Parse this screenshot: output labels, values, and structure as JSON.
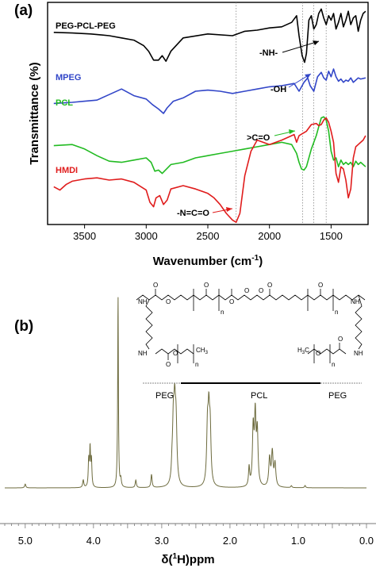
{
  "chart_data": [
    {
      "type": "line",
      "panel_label": "(a)",
      "xlabel": "Wavenumber (cm",
      "xlabel_sup": "-1",
      "xlabel_end": ")",
      "ylabel": "Transmittance (%)",
      "xlim": [
        3800,
        1200
      ],
      "x_ticks": [
        {
          "value": 3500,
          "label": "3500"
        },
        {
          "value": 3000,
          "label": "3000"
        },
        {
          "value": 2500,
          "label": "2500"
        },
        {
          "value": 2000,
          "label": "2000"
        },
        {
          "value": 1500,
          "label": "1500"
        }
      ],
      "reference_lines": [
        2270,
        1730,
        1640,
        1540
      ],
      "series": [
        {
          "name": "PEG-PCL-PEG",
          "color": "#000000",
          "points": [
            [
              3750,
              0.865
            ],
            [
              3600,
              0.862
            ],
            [
              3450,
              0.858
            ],
            [
              3300,
              0.85
            ],
            [
              3200,
              0.84
            ],
            [
              3100,
              0.83
            ],
            [
              3020,
              0.805
            ],
            [
              2980,
              0.78
            ],
            [
              2940,
              0.74
            ],
            [
              2900,
              0.74
            ],
            [
              2870,
              0.76
            ],
            [
              2840,
              0.735
            ],
            [
              2800,
              0.78
            ],
            [
              2700,
              0.84
            ],
            [
              2500,
              0.858
            ],
            [
              2300,
              0.85
            ],
            [
              2200,
              0.87
            ],
            [
              2100,
              0.875
            ],
            [
              2000,
              0.885
            ],
            [
              1900,
              0.89
            ],
            [
              1820,
              0.91
            ],
            [
              1780,
              0.94
            ],
            [
              1760,
              0.85
            ],
            [
              1735,
              0.76
            ],
            [
              1715,
              0.73
            ],
            [
              1700,
              0.77
            ],
            [
              1680,
              0.92
            ],
            [
              1660,
              0.94
            ],
            [
              1640,
              0.88
            ],
            [
              1620,
              0.9
            ],
            [
              1600,
              0.95
            ],
            [
              1580,
              0.97
            ],
            [
              1560,
              0.93
            ],
            [
              1540,
              0.9
            ],
            [
              1520,
              0.94
            ],
            [
              1500,
              0.92
            ],
            [
              1480,
              0.95
            ],
            [
              1460,
              0.88
            ],
            [
              1440,
              0.91
            ],
            [
              1420,
              0.95
            ],
            [
              1400,
              0.89
            ],
            [
              1380,
              0.92
            ],
            [
              1360,
              0.96
            ],
            [
              1340,
              0.9
            ],
            [
              1320,
              0.93
            ],
            [
              1300,
              0.94
            ],
            [
              1280,
              0.87
            ],
            [
              1260,
              0.92
            ],
            [
              1240,
              0.95
            ],
            [
              1220,
              0.96
            ]
          ]
        },
        {
          "name": "MPEG",
          "color": "#3246c8",
          "points": [
            [
              3750,
              0.545
            ],
            [
              3600,
              0.55
            ],
            [
              3500,
              0.555
            ],
            [
              3400,
              0.56
            ],
            [
              3300,
              0.585
            ],
            [
              3200,
              0.61
            ],
            [
              3100,
              0.58
            ],
            [
              3000,
              0.565
            ],
            [
              2950,
              0.54
            ],
            [
              2900,
              0.52
            ],
            [
              2860,
              0.5
            ],
            [
              2830,
              0.525
            ],
            [
              2780,
              0.555
            ],
            [
              2700,
              0.57
            ],
            [
              2600,
              0.6
            ],
            [
              2500,
              0.605
            ],
            [
              2400,
              0.6
            ],
            [
              2300,
              0.59
            ],
            [
              2200,
              0.6
            ],
            [
              2100,
              0.61
            ],
            [
              2000,
              0.62
            ],
            [
              1900,
              0.625
            ],
            [
              1800,
              0.635
            ],
            [
              1760,
              0.6
            ],
            [
              1720,
              0.64
            ],
            [
              1690,
              0.66
            ],
            [
              1670,
              0.625
            ],
            [
              1640,
              0.6
            ],
            [
              1610,
              0.665
            ],
            [
              1580,
              0.685
            ],
            [
              1560,
              0.66
            ],
            [
              1540,
              0.65
            ],
            [
              1520,
              0.69
            ],
            [
              1500,
              0.665
            ],
            [
              1480,
              0.7
            ],
            [
              1460,
              0.665
            ],
            [
              1440,
              0.645
            ],
            [
              1420,
              0.655
            ],
            [
              1400,
              0.64
            ],
            [
              1380,
              0.65
            ],
            [
              1360,
              0.645
            ],
            [
              1340,
              0.66
            ],
            [
              1320,
              0.64
            ],
            [
              1300,
              0.65
            ],
            [
              1280,
              0.66
            ],
            [
              1260,
              0.655
            ],
            [
              1220,
              0.66
            ]
          ]
        },
        {
          "name": "PCL",
          "color": "#22bb22",
          "points": [
            [
              3750,
              0.355
            ],
            [
              3600,
              0.36
            ],
            [
              3500,
              0.34
            ],
            [
              3400,
              0.31
            ],
            [
              3300,
              0.285
            ],
            [
              3200,
              0.28
            ],
            [
              3100,
              0.29
            ],
            [
              3000,
              0.3
            ],
            [
              2960,
              0.28
            ],
            [
              2930,
              0.24
            ],
            [
              2900,
              0.245
            ],
            [
              2870,
              0.23
            ],
            [
              2800,
              0.27
            ],
            [
              2700,
              0.28
            ],
            [
              2600,
              0.3
            ],
            [
              2500,
              0.31
            ],
            [
              2400,
              0.32
            ],
            [
              2300,
              0.33
            ],
            [
              2200,
              0.34
            ],
            [
              2100,
              0.35
            ],
            [
              2000,
              0.36
            ],
            [
              1900,
              0.37
            ],
            [
              1820,
              0.36
            ],
            [
              1780,
              0.32
            ],
            [
              1760,
              0.28
            ],
            [
              1740,
              0.25
            ],
            [
              1720,
              0.245
            ],
            [
              1700,
              0.26
            ],
            [
              1660,
              0.34
            ],
            [
              1620,
              0.4
            ],
            [
              1600,
              0.44
            ],
            [
              1580,
              0.48
            ],
            [
              1560,
              0.485
            ],
            [
              1540,
              0.47
            ],
            [
              1520,
              0.42
            ],
            [
              1500,
              0.33
            ],
            [
              1480,
              0.29
            ],
            [
              1460,
              0.3
            ],
            [
              1440,
              0.26
            ],
            [
              1420,
              0.29
            ],
            [
              1400,
              0.27
            ],
            [
              1380,
              0.28
            ],
            [
              1360,
              0.27
            ],
            [
              1340,
              0.28
            ],
            [
              1320,
              0.26
            ],
            [
              1300,
              0.285
            ],
            [
              1280,
              0.27
            ],
            [
              1260,
              0.28
            ],
            [
              1220,
              0.26
            ]
          ]
        },
        {
          "name": "HMDI",
          "color": "#e01c1c",
          "points": [
            [
              3750,
              0.17
            ],
            [
              3700,
              0.155
            ],
            [
              3650,
              0.18
            ],
            [
              3600,
              0.195
            ],
            [
              3500,
              0.205
            ],
            [
              3400,
              0.21
            ],
            [
              3300,
              0.2
            ],
            [
              3200,
              0.205
            ],
            [
              3100,
              0.19
            ],
            [
              3000,
              0.155
            ],
            [
              2970,
              0.1
            ],
            [
              2940,
              0.08
            ],
            [
              2920,
              0.12
            ],
            [
              2890,
              0.13
            ],
            [
              2860,
              0.09
            ],
            [
              2830,
              0.11
            ],
            [
              2800,
              0.16
            ],
            [
              2700,
              0.175
            ],
            [
              2600,
              0.16
            ],
            [
              2500,
              0.14
            ],
            [
              2450,
              0.12
            ],
            [
              2400,
              0.09
            ],
            [
              2350,
              0.05
            ],
            [
              2300,
              0.02
            ],
            [
              2270,
              0.01
            ],
            [
              2240,
              0.05
            ],
            [
              2200,
              0.22
            ],
            [
              2150,
              0.33
            ],
            [
              2100,
              0.38
            ],
            [
              2000,
              0.36
            ],
            [
              1900,
              0.38
            ],
            [
              1800,
              0.405
            ],
            [
              1780,
              0.37
            ],
            [
              1760,
              0.4
            ],
            [
              1700,
              0.42
            ],
            [
              1660,
              0.45
            ],
            [
              1620,
              0.455
            ],
            [
              1600,
              0.445
            ],
            [
              1580,
              0.45
            ],
            [
              1560,
              0.47
            ],
            [
              1540,
              0.48
            ],
            [
              1520,
              0.46
            ],
            [
              1500,
              0.42
            ],
            [
              1480,
              0.37
            ],
            [
              1460,
              0.23
            ],
            [
              1440,
              0.19
            ],
            [
              1420,
              0.26
            ],
            [
              1400,
              0.25
            ],
            [
              1380,
              0.2
            ],
            [
              1360,
              0.12
            ],
            [
              1340,
              0.16
            ],
            [
              1320,
              0.3
            ],
            [
              1300,
              0.35
            ],
            [
              1280,
              0.36
            ],
            [
              1260,
              0.37
            ],
            [
              1240,
              0.38
            ],
            [
              1220,
              0.4
            ]
          ]
        }
      ],
      "annotations": [
        {
          "text": "-NH-",
          "wavenumber": 1540
        },
        {
          "text": "-OH",
          "wavenumber": 1640
        },
        {
          "text": ">C=O",
          "wavenumber": 1730
        },
        {
          "text": "-N=C=O",
          "wavenumber": 2270
        }
      ]
    },
    {
      "type": "line",
      "panel_label": "(b)",
      "xlabel": "δ(",
      "xlabel_sup": "1",
      "xlabel_end": "H)ppm",
      "xlim": [
        5.3,
        0.0
      ],
      "x_ticks": [
        {
          "value": 5.0,
          "label": "5.0"
        },
        {
          "value": 4.0,
          "label": "4.0"
        },
        {
          "value": 3.0,
          "label": "3.0"
        },
        {
          "value": 2.0,
          "label": "2.0"
        },
        {
          "value": 1.0,
          "label": "1.0"
        },
        {
          "value": 0.0,
          "label": "0.0"
        }
      ],
      "color": "#6d6b3e",
      "peaks": [
        {
          "ppm": 5.0,
          "height": 0.02,
          "width": 0.01
        },
        {
          "ppm": 4.15,
          "height": 0.04,
          "width": 0.01
        },
        {
          "ppm": 4.07,
          "height": 0.14,
          "width": 0.008
        },
        {
          "ppm": 4.05,
          "height": 0.2,
          "width": 0.008
        },
        {
          "ppm": 4.03,
          "height": 0.14,
          "width": 0.008
        },
        {
          "ppm": 3.65,
          "height": 0.05,
          "width": 0.01
        },
        {
          "ppm": 3.64,
          "height": 1.0,
          "width": 0.006
        },
        {
          "ppm": 3.6,
          "height": 0.04,
          "width": 0.01
        },
        {
          "ppm": 3.38,
          "height": 0.04,
          "width": 0.01
        },
        {
          "ppm": 3.15,
          "height": 0.07,
          "width": 0.01
        },
        {
          "ppm": 2.85,
          "height": 0.06,
          "width": 0.01
        },
        {
          "ppm": 2.33,
          "height": 0.28,
          "width": 0.014
        },
        {
          "ppm": 2.31,
          "height": 0.33,
          "width": 0.014
        },
        {
          "ppm": 2.29,
          "height": 0.27,
          "width": 0.014
        },
        {
          "ppm": 1.72,
          "height": 0.1,
          "width": 0.01
        },
        {
          "ppm": 1.66,
          "height": 0.3,
          "width": 0.013
        },
        {
          "ppm": 1.63,
          "height": 0.36,
          "width": 0.013
        },
        {
          "ppm": 1.6,
          "height": 0.28,
          "width": 0.013
        },
        {
          "ppm": 1.42,
          "height": 0.15,
          "width": 0.014
        },
        {
          "ppm": 1.38,
          "height": 0.18,
          "width": 0.014
        },
        {
          "ppm": 1.34,
          "height": 0.12,
          "width": 0.014
        },
        {
          "ppm": 1.1,
          "height": 0.01,
          "width": 0.01
        },
        {
          "ppm": 0.9,
          "height": 0.012,
          "width": 0.01
        }
      ],
      "peak_groups": [
        {
          "center": 4.05,
          "height": 0.2,
          "spread": 0.05
        },
        {
          "center": 2.3,
          "height": 0.33,
          "spread": 0.06
        },
        {
          "center": 1.63,
          "height": 0.36,
          "spread": 0.08
        },
        {
          "center": 1.38,
          "height": 0.18,
          "spread": 0.07
        },
        {
          "center": 3.0,
          "height": 0.55,
          "spread": 0.07
        }
      ],
      "structure": {
        "nh_label": "NH",
        "oxygen_label": "O",
        "n_label": "n",
        "ch3_left": "CH",
        "ch3_sub": "3",
        "ch3_right_prefix": "H",
        "ch3_right_sub": "3",
        "ch3_right_suffix": "C"
      },
      "segments": [
        {
          "label": "PEG"
        },
        {
          "label": "PCL"
        },
        {
          "label": "PEG"
        }
      ]
    }
  ]
}
